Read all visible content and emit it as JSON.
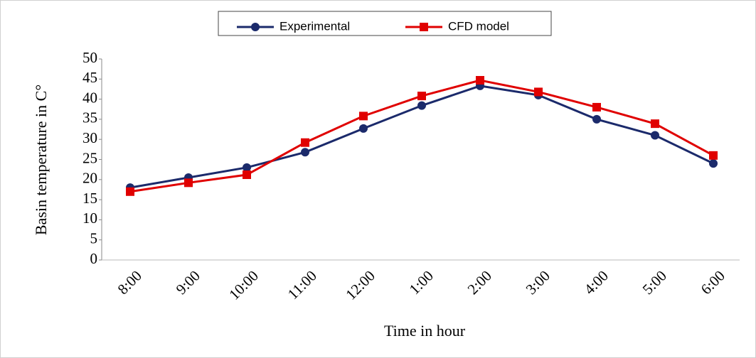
{
  "chart_data": {
    "type": "line",
    "xlabel": "Time in hour",
    "ylabel": "Basin temperature in C°",
    "categories": [
      "8:00",
      "9:00",
      "10:00",
      "11:00",
      "12:00",
      "1:00",
      "2:00",
      "3:00",
      "4:00",
      "5:00",
      "6:00"
    ],
    "series": [
      {
        "name": "Experimental",
        "color": "#1b2a6b",
        "marker": "circle",
        "values": [
          18,
          20.5,
          23,
          26.8,
          32.7,
          38.4,
          43.3,
          41,
          35,
          31,
          24
        ]
      },
      {
        "name": "CFD model",
        "color": "#e00000",
        "marker": "square",
        "values": [
          17,
          19.2,
          21.2,
          29.2,
          35.8,
          40.8,
          44.7,
          41.8,
          38,
          33.9,
          26
        ]
      }
    ],
    "ylim": [
      0,
      50
    ],
    "yticks": [
      0,
      5,
      10,
      15,
      20,
      25,
      30,
      35,
      40,
      45,
      50
    ],
    "legend": "top"
  }
}
